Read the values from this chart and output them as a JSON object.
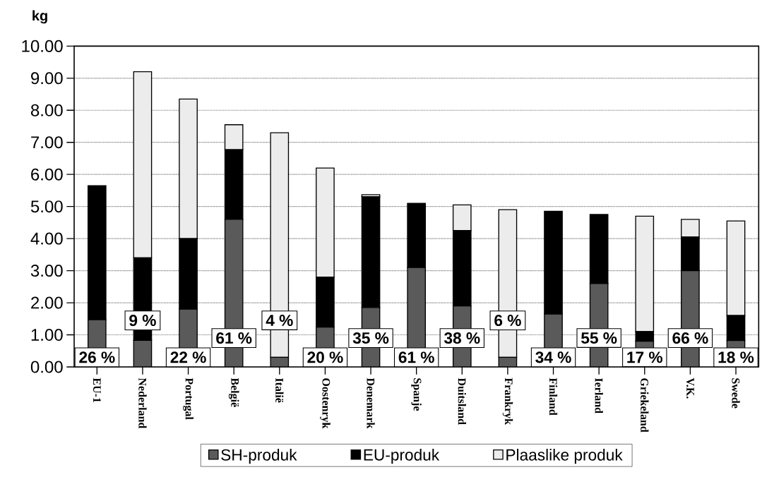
{
  "chart_data": {
    "type": "bar",
    "stacked": true,
    "ylabel": "kg",
    "categories": [
      "EU-1",
      "Nederland",
      "Portugal",
      "België",
      "Italië",
      "Oostenryk",
      "Denemark",
      "Spanje",
      "Duitsland",
      "Frankryk",
      "Finland",
      "Ierland",
      "Griekeland",
      "V.K.",
      "Swede"
    ],
    "series": [
      {
        "name": "SH-produk",
        "color": "#5a5a5a",
        "values": [
          1.47,
          0.83,
          1.8,
          4.6,
          0.3,
          1.24,
          1.85,
          3.1,
          1.9,
          0.3,
          1.65,
          2.6,
          0.8,
          3.0,
          0.82
        ]
      },
      {
        "name": "EU-produk",
        "color": "#000000",
        "values": [
          4.18,
          2.57,
          2.2,
          2.17,
          0,
          1.56,
          3.45,
          2.0,
          2.35,
          0,
          3.2,
          2.15,
          0.3,
          1.05,
          0.78
        ]
      },
      {
        "name": "Plaaslike produk",
        "color": "#ececec",
        "values": [
          0,
          5.8,
          4.35,
          0.78,
          7.0,
          3.4,
          0.07,
          0,
          0.8,
          4.6,
          0,
          0,
          3.6,
          0.55,
          2.95
        ]
      }
    ],
    "ylim": [
      0,
      10
    ],
    "yticks": [
      {
        "value": 0,
        "label": "0.00"
      },
      {
        "value": 1,
        "label": "1.00"
      },
      {
        "value": 2,
        "label": "2.00"
      },
      {
        "value": 3,
        "label": "3.00"
      },
      {
        "value": 4,
        "label": "4.00"
      },
      {
        "value": 5,
        "label": "5.00"
      },
      {
        "value": 6,
        "label": "6.00"
      },
      {
        "value": 7,
        "label": "7.00"
      },
      {
        "value": 8,
        "label": "8.00"
      },
      {
        "value": 9,
        "label": "9.00"
      },
      {
        "value": 10,
        "label": "10.00"
      }
    ],
    "annotations": [
      "26 %",
      "9 %",
      "22 %",
      "61 %",
      "4 %",
      "20 %",
      "35 %",
      "61 %",
      "38 %",
      "6 %",
      "34 %",
      "55 %",
      "17 %",
      "66 %",
      "18 %"
    ],
    "grid": "y",
    "legend": "bottom"
  }
}
